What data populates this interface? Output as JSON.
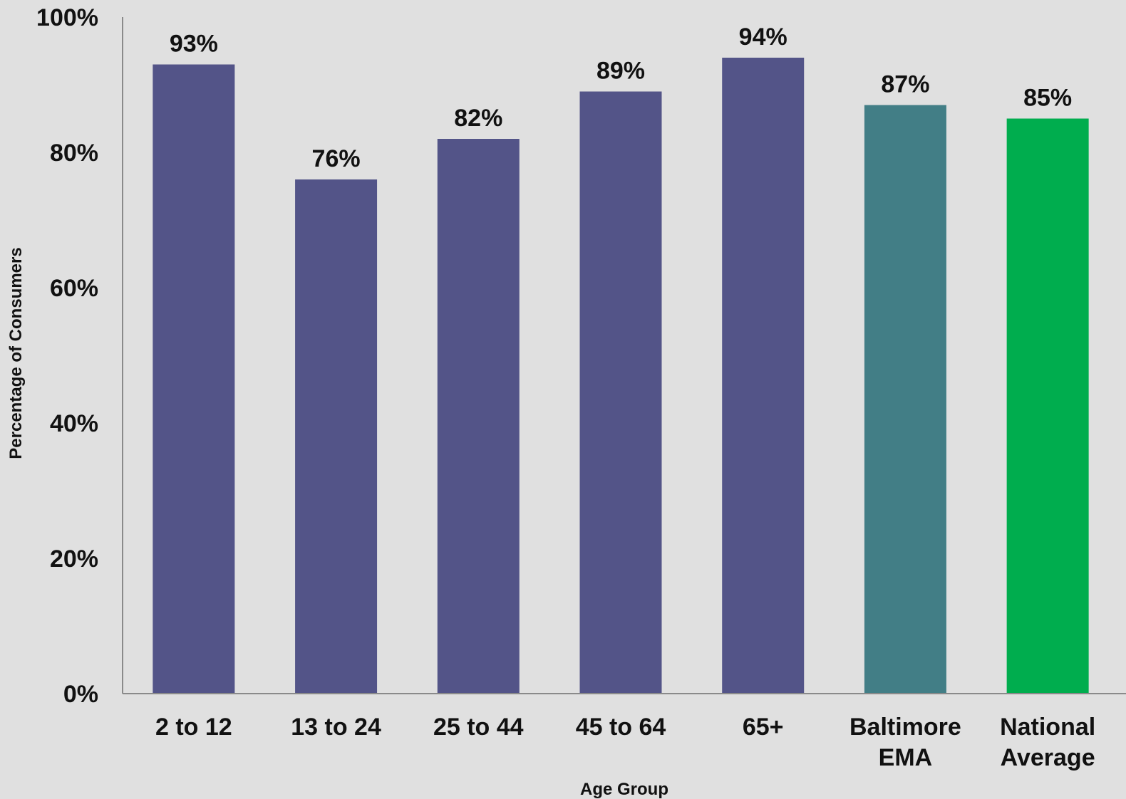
{
  "colors": {
    "background": "#e0e0e0",
    "axis": "#8a8a8a",
    "age_bar": "#535488",
    "ema_bar": "#427e86",
    "national_bar": "#00ad4e"
  },
  "chart_data": {
    "type": "bar",
    "xlabel": "Age Group",
    "ylabel": "Percentage of Consumers",
    "ylim": [
      0,
      100
    ],
    "grid": false,
    "legend": "none",
    "y_ticks": [
      {
        "value": 0,
        "label": "0%"
      },
      {
        "value": 20,
        "label": "20%"
      },
      {
        "value": 40,
        "label": "40%"
      },
      {
        "value": 60,
        "label": "60%"
      },
      {
        "value": 80,
        "label": "80%"
      },
      {
        "value": 100,
        "label": "100%"
      }
    ],
    "bars": [
      {
        "category": [
          "2 to 12"
        ],
        "value": 93,
        "label": "93%",
        "color": "#535488"
      },
      {
        "category": [
          "13 to 24"
        ],
        "value": 76,
        "label": "76%",
        "color": "#535488"
      },
      {
        "category": [
          "25 to 44"
        ],
        "value": 82,
        "label": "82%",
        "color": "#535488"
      },
      {
        "category": [
          "45 to 64"
        ],
        "value": 89,
        "label": "89%",
        "color": "#535488"
      },
      {
        "category": [
          "65+"
        ],
        "value": 94,
        "label": "94%",
        "color": "#535488"
      },
      {
        "category": [
          "Baltimore",
          "EMA"
        ],
        "value": 87,
        "label": "87%",
        "color": "#427e86"
      },
      {
        "category": [
          "National",
          "Average"
        ],
        "value": 85,
        "label": "85%",
        "color": "#00ad4e"
      }
    ]
  }
}
